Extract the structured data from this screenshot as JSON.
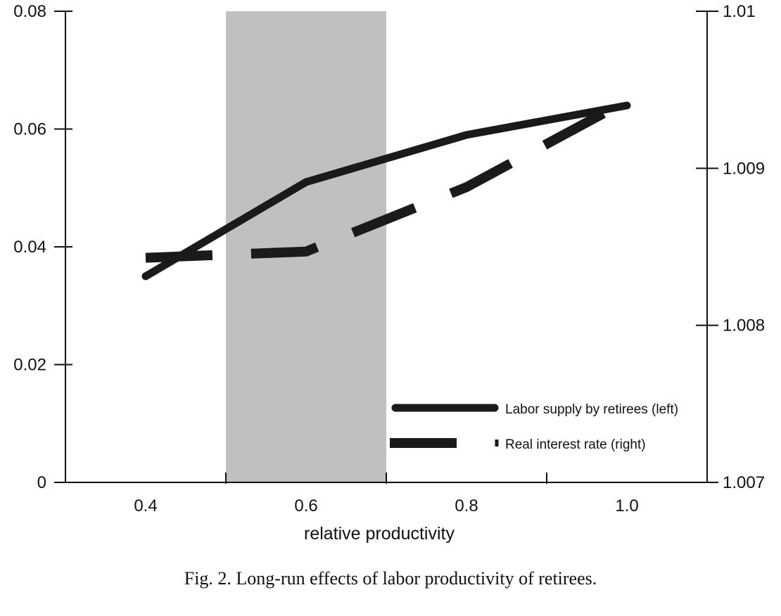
{
  "caption": "Fig. 2.  Long-run effects of labor productivity of retirees.",
  "chart_data": {
    "type": "line",
    "title": "",
    "xlabel": "relative productivity",
    "ylabel_left": "",
    "ylabel_right": "",
    "xlim": [
      0.3,
      1.1
    ],
    "ylim_left": [
      0,
      0.08
    ],
    "ylim_right": [
      1.007,
      1.01
    ],
    "x_ticks": [
      0.4,
      0.6,
      0.8,
      1.0
    ],
    "x_tick_labels": [
      "0.4",
      "0.6",
      "0.8",
      "1.0"
    ],
    "y_left_ticks": [
      0,
      0.02,
      0.04,
      0.06,
      0.08
    ],
    "y_left_tick_labels": [
      "0",
      "0.02",
      "0.04",
      "0.06",
      "0.08"
    ],
    "y_right_ticks": [
      1.007,
      1.008,
      1.009,
      1.01
    ],
    "y_right_tick_labels": [
      "1.007",
      "1.008",
      "1.009",
      "1.01"
    ],
    "shaded_region": [
      0.5,
      0.7
    ],
    "shaded_color": "#c0c0c0",
    "grid": false,
    "legend_position": "bottom-right",
    "series": [
      {
        "name": "Labor supply by retirees (left)",
        "axis": "left",
        "style": "solid",
        "color": "#1a1a1a",
        "x": [
          0.4,
          0.6,
          0.8,
          1.0
        ],
        "y": [
          0.035,
          0.051,
          0.059,
          0.064
        ]
      },
      {
        "name": "Real interest rate (right)",
        "axis": "right",
        "style": "dashed",
        "color": "#1a1a1a",
        "x": [
          0.4,
          0.6,
          0.8,
          1.0
        ],
        "y": [
          1.00843,
          1.00847,
          1.00888,
          1.00943
        ]
      }
    ]
  }
}
